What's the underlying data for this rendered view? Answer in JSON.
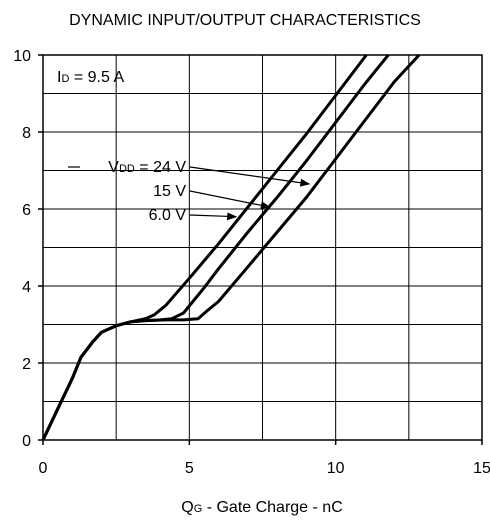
{
  "chart_data": {
    "type": "line",
    "title": "DYNAMIC INPUT/OUTPUT CHARACTERISTICS",
    "xlabel": {
      "prefix": "Q",
      "sub": "G",
      "suffix": " - Gate Charge - nC"
    },
    "xlim": [
      0,
      15
    ],
    "ylim": [
      0,
      10
    ],
    "xticks": [
      0,
      5,
      10,
      15
    ],
    "yticks": [
      0,
      2,
      4,
      6,
      8,
      10
    ],
    "x_grid_step": 2.5,
    "y_grid_step": 1,
    "grid": true,
    "condition": {
      "prefix": "I",
      "sub": "D",
      "suffix": " = 9.5 A"
    },
    "series": [
      {
        "name": "24 V",
        "label": {
          "prefix": "V",
          "sub": "DD",
          "suffix": " = 24 V"
        },
        "points": [
          [
            0,
            0
          ],
          [
            0.5,
            0.8
          ],
          [
            1.0,
            1.6
          ],
          [
            1.3,
            2.15
          ],
          [
            1.7,
            2.55
          ],
          [
            2.0,
            2.8
          ],
          [
            2.5,
            2.97
          ],
          [
            3.0,
            3.07
          ],
          [
            3.5,
            3.1
          ],
          [
            4.2,
            3.12
          ],
          [
            4.8,
            3.12
          ],
          [
            5.3,
            3.15
          ],
          [
            5.6,
            3.35
          ],
          [
            6.0,
            3.6
          ],
          [
            7.0,
            4.5
          ],
          [
            8.0,
            5.4
          ],
          [
            9.0,
            6.3
          ],
          [
            10.0,
            7.3
          ],
          [
            11.0,
            8.3
          ],
          [
            12.0,
            9.3
          ],
          [
            12.85,
            10.0
          ]
        ]
      },
      {
        "name": "15 V",
        "label": {
          "prefix": "",
          "sub": "",
          "suffix": "15 V"
        },
        "points": [
          [
            0,
            0
          ],
          [
            0.5,
            0.8
          ],
          [
            1.0,
            1.6
          ],
          [
            1.3,
            2.15
          ],
          [
            1.7,
            2.55
          ],
          [
            2.0,
            2.8
          ],
          [
            2.5,
            2.97
          ],
          [
            3.0,
            3.07
          ],
          [
            3.5,
            3.1
          ],
          [
            4.0,
            3.12
          ],
          [
            4.4,
            3.15
          ],
          [
            4.8,
            3.3
          ],
          [
            5.5,
            3.95
          ],
          [
            6.0,
            4.45
          ],
          [
            7.0,
            5.4
          ],
          [
            8.0,
            6.3
          ],
          [
            9.0,
            7.25
          ],
          [
            10.0,
            8.25
          ],
          [
            11.0,
            9.25
          ],
          [
            11.8,
            10.0
          ]
        ]
      },
      {
        "name": "6.0 V",
        "label": {
          "prefix": "",
          "sub": "",
          "suffix": "6.0 V"
        },
        "points": [
          [
            0,
            0
          ],
          [
            0.5,
            0.8
          ],
          [
            1.0,
            1.6
          ],
          [
            1.3,
            2.15
          ],
          [
            1.7,
            2.55
          ],
          [
            2.0,
            2.8
          ],
          [
            2.5,
            2.97
          ],
          [
            3.0,
            3.07
          ],
          [
            3.5,
            3.15
          ],
          [
            3.8,
            3.25
          ],
          [
            4.2,
            3.5
          ],
          [
            5.0,
            4.2
          ],
          [
            6.0,
            5.1
          ],
          [
            7.0,
            6.05
          ],
          [
            8.0,
            7.0
          ],
          [
            9.0,
            7.95
          ],
          [
            10.0,
            8.95
          ],
          [
            11.0,
            9.95
          ],
          [
            11.05,
            10.0
          ]
        ]
      }
    ],
    "annotation_arrows": [
      {
        "series": "24 V",
        "target": [
          9.1,
          6.65
        ]
      },
      {
        "series": "15 V",
        "target": [
          7.75,
          6.05
        ]
      },
      {
        "series": "6.0 V",
        "target": [
          6.6,
          5.8
        ]
      }
    ]
  }
}
